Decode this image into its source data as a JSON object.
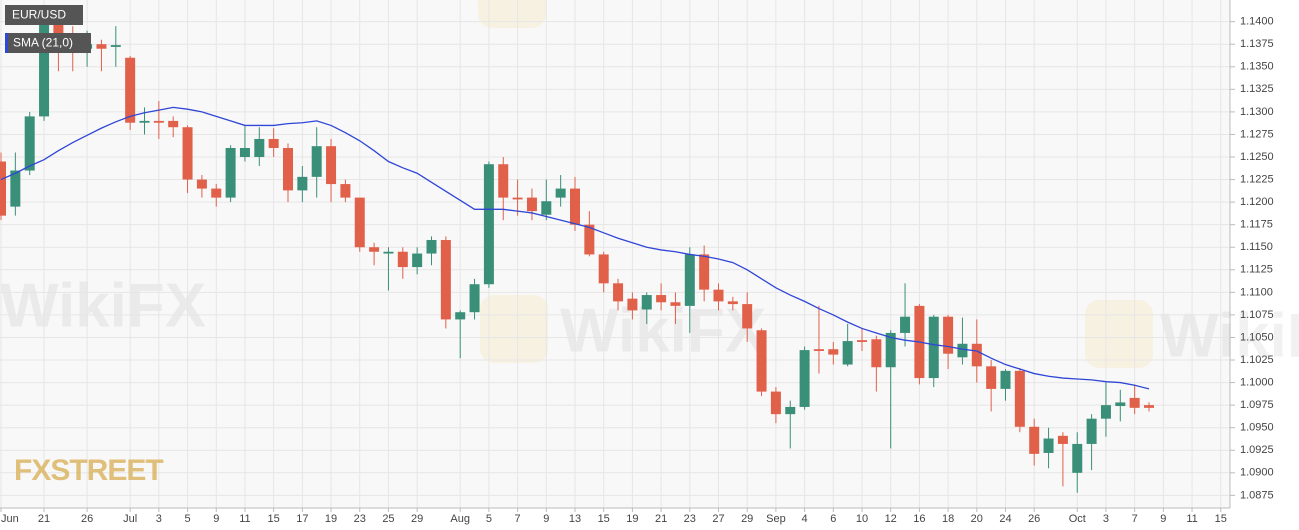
{
  "chart_data": {
    "type": "candlestick",
    "symbol": "EUR/USD",
    "brand": "FXSTREET",
    "watermark": "WikiFX",
    "up_color": "#3a8f78",
    "down_color": "#e0604a",
    "grid": true,
    "categories": [
      "Jun",
      null,
      null,
      "21",
      null,
      null,
      "26",
      null,
      null,
      "Jul",
      null,
      "3",
      null,
      "5",
      null,
      "9",
      null,
      "11",
      null,
      "15",
      null,
      "17",
      null,
      "19",
      null,
      "23",
      null,
      "25",
      null,
      "29",
      null,
      null,
      "Aug",
      null,
      "5",
      null,
      "7",
      null,
      "9",
      null,
      "13",
      null,
      "15",
      null,
      "19",
      null,
      "21",
      null,
      "23",
      null,
      "27",
      null,
      "29",
      null,
      "Sep",
      null,
      "4",
      null,
      "6",
      null,
      "10",
      null,
      "12",
      null,
      "16",
      null,
      "18",
      null,
      "20",
      null,
      "24",
      null,
      "26",
      null,
      null,
      "Oct",
      null,
      "3",
      null,
      "7",
      null,
      "9",
      null,
      "11",
      null,
      "15"
    ],
    "open": [
      1.1245,
      1.1195,
      1.1235,
      1.1295,
      1.14,
      1.138,
      1.137,
      1.1375,
      1.1372,
      1.136,
      1.1288,
      1.129,
      1.129,
      1.1283,
      1.1225,
      1.1215,
      1.1205,
      1.125,
      1.125,
      1.127,
      1.126,
      1.1213,
      1.1228,
      1.1262,
      1.122,
      1.1205,
      1.115,
      1.1143,
      1.1145,
      1.1128,
      1.1143,
      1.1158,
      1.107,
      1.1078,
      1.1109,
      1.1242,
      1.1205,
      1.1205,
      1.1186,
      1.1205,
      1.1215,
      1.1175,
      1.1142,
      1.111,
      1.1093,
      1.1081,
      1.1097,
      1.1089,
      1.1085,
      1.1142,
      1.1103,
      1.109,
      1.1087,
      1.1058,
      1.099,
      1.0965,
      1.0973,
      1.1037,
      1.1037,
      1.102,
      1.1047,
      1.1048,
      1.1017,
      1.1055,
      1.1085,
      1.1005,
      1.1073,
      1.1028,
      1.1043,
      1.1018,
      1.0993,
      1.1013,
      1.0951,
      1.0922,
      1.0941,
      1.09,
      1.0932,
      1.096,
      1.0974,
      1.0983,
      1.0975,
      null,
      null,
      null,
      null,
      null
    ],
    "high": [
      1.1255,
      1.1255,
      1.13,
      1.14,
      1.14,
      1.1395,
      1.139,
      1.138,
      1.1395,
      1.1362,
      1.1305,
      1.1312,
      1.1295,
      1.1285,
      1.123,
      1.122,
      1.1263,
      1.1285,
      1.1283,
      1.1282,
      1.1265,
      1.124,
      1.1283,
      1.127,
      1.1225,
      1.1205,
      1.1155,
      1.115,
      1.115,
      1.115,
      1.1162,
      1.1162,
      1.108,
      1.1115,
      1.1245,
      1.125,
      1.1225,
      1.1215,
      1.1225,
      1.123,
      1.1228,
      1.119,
      1.1145,
      1.1115,
      1.11,
      1.11,
      1.111,
      1.11,
      1.115,
      1.1152,
      1.111,
      1.1095,
      1.11,
      1.106,
      1.0995,
      1.098,
      1.104,
      1.1085,
      1.1045,
      1.1065,
      1.106,
      1.1052,
      1.1058,
      1.111,
      1.1087,
      1.1075,
      1.1075,
      1.1072,
      1.107,
      1.1025,
      1.1015,
      1.1016,
      1.096,
      1.095,
      1.0945,
      1.0945,
      1.0965,
      1.1,
      1.0992,
      1.0998,
      1.0978,
      null,
      null,
      null,
      null,
      null
    ],
    "low": [
      1.118,
      1.1185,
      1.123,
      1.129,
      1.1345,
      1.1345,
      1.135,
      1.1345,
      1.135,
      1.128,
      1.1275,
      1.127,
      1.1272,
      1.121,
      1.1205,
      1.1195,
      1.12,
      1.1245,
      1.124,
      1.125,
      1.12,
      1.12,
      1.1205,
      1.12,
      1.12,
      1.1145,
      1.113,
      1.1102,
      1.1115,
      1.112,
      1.113,
      1.106,
      1.1027,
      1.107,
      1.1105,
      1.118,
      1.1185,
      1.118,
      1.118,
      1.1195,
      1.1168,
      1.114,
      1.11,
      1.108,
      1.107,
      1.1065,
      1.108,
      1.1065,
      1.1055,
      1.109,
      1.108,
      1.108,
      1.1045,
      1.0985,
      1.0955,
      1.0927,
      1.097,
      1.101,
      1.102,
      1.1018,
      1.1035,
      1.099,
      1.0927,
      1.104,
      1.0998,
      1.0995,
      1.1015,
      1.102,
      1.1,
      1.0968,
      1.098,
      1.0945,
      1.0908,
      1.0905,
      1.0885,
      1.0878,
      1.0903,
      1.094,
      1.0957,
      1.0965,
      1.0968,
      null,
      null,
      null,
      null,
      null
    ],
    "close": [
      1.1185,
      1.1235,
      1.1295,
      1.1397,
      1.1375,
      1.1372,
      1.1375,
      1.137,
      1.1374,
      1.1288,
      1.129,
      1.1288,
      1.1283,
      1.1225,
      1.1215,
      1.1205,
      1.126,
      1.126,
      1.127,
      1.126,
      1.1213,
      1.1228,
      1.1262,
      1.122,
      1.1205,
      1.115,
      1.1145,
      1.1145,
      1.1128,
      1.1143,
      1.1158,
      1.107,
      1.1078,
      1.1109,
      1.1242,
      1.1205,
      1.1203,
      1.119,
      1.1201,
      1.1215,
      1.1175,
      1.1142,
      1.111,
      1.109,
      1.108,
      1.1097,
      1.1089,
      1.1085,
      1.1142,
      1.1103,
      1.109,
      1.1087,
      1.106,
      1.099,
      1.0965,
      1.0973,
      1.1036,
      1.1035,
      1.1031,
      1.1046,
      1.1045,
      1.1017,
      1.1055,
      1.1073,
      1.1005,
      1.1073,
      1.1032,
      1.1043,
      1.1018,
      1.0993,
      1.1013,
      1.0951,
      1.0921,
      1.0938,
      1.0932,
      1.0932,
      1.096,
      1.0975,
      1.0978,
      1.0972,
      1.0972,
      null,
      null,
      null,
      null,
      null
    ],
    "series": [
      {
        "name": "SMA (21,0)",
        "color": "#2f46d6",
        "values": [
          1.1225,
          1.1232,
          1.124,
          1.1247,
          1.1257,
          1.1266,
          1.1274,
          1.1282,
          1.1289,
          1.1295,
          1.1299,
          1.1302,
          1.1305,
          1.1303,
          1.13,
          1.1295,
          1.129,
          1.1285,
          1.1285,
          1.1285,
          1.1287,
          1.1288,
          1.129,
          1.1285,
          1.1277,
          1.1268,
          1.1257,
          1.1245,
          1.1238,
          1.1232,
          1.1222,
          1.1212,
          1.1202,
          1.1192,
          1.1192,
          1.1192,
          1.119,
          1.1188,
          1.1184,
          1.118,
          1.1176,
          1.1172,
          1.1166,
          1.116,
          1.1155,
          1.115,
          1.1147,
          1.1145,
          1.1142,
          1.114,
          1.1137,
          1.1133,
          1.1125,
          1.1115,
          1.1105,
          1.1097,
          1.109,
          1.1082,
          1.1075,
          1.1067,
          1.106,
          1.1055,
          1.105,
          1.1047,
          1.1045,
          1.1042,
          1.104,
          1.1037,
          1.1035,
          1.1027,
          1.102,
          1.1015,
          1.101,
          1.1007,
          1.1005,
          1.1004,
          1.1003,
          1.1001,
          1.1,
          1.0997,
          1.0993,
          null,
          null,
          null,
          null,
          null
        ]
      }
    ],
    "ylim": [
      1.0861,
      1.1424
    ],
    "yticks": [
      1.0875,
      {
        "value": 1.09,
        "label": "1.0900"
      },
      1.0925,
      {
        "value": 1.095,
        "label": "1.0950"
      },
      1.0975,
      {
        "value": 1.1,
        "label": "1.1000"
      },
      1.1025,
      {
        "value": 1.105,
        "label": "1.1050"
      },
      1.1075,
      {
        "value": 1.11,
        "label": "1.1100"
      },
      1.1125,
      {
        "value": 1.115,
        "label": "1.1150"
      },
      1.1175,
      {
        "value": 1.12,
        "label": "1.1200"
      },
      1.1225,
      {
        "value": 1.125,
        "label": "1.1250"
      },
      1.1275,
      {
        "value": 1.13,
        "label": "1.1300"
      },
      1.1325,
      {
        "value": 1.135,
        "label": "1.1350"
      },
      1.1375,
      {
        "value": 1.14,
        "label": "1.1400"
      }
    ]
  }
}
